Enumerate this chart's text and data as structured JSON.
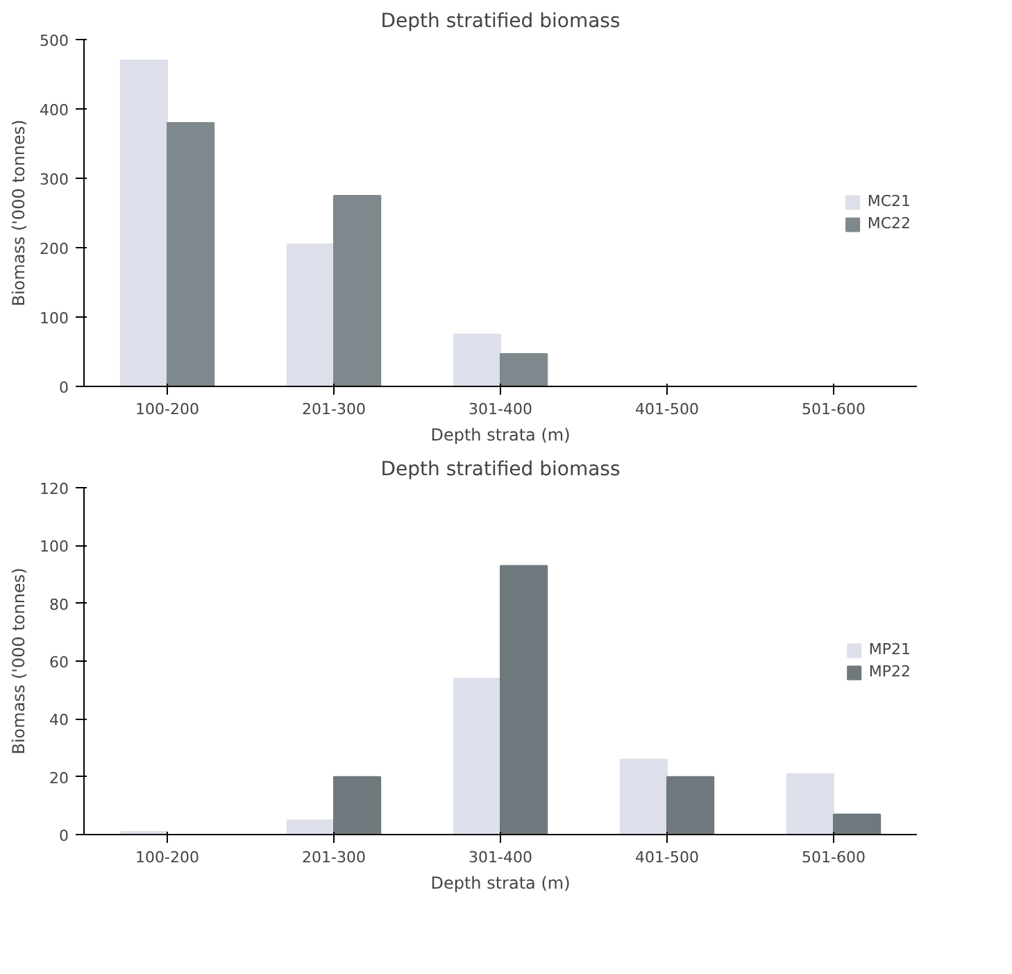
{
  "chart_data": [
    {
      "type": "bar",
      "title": "Depth stratified biomass",
      "xlabel": "Depth strata (m)",
      "ylabel": "Biomass ('000 tonnes)",
      "categories": [
        "100-200",
        "201-300",
        "301-400",
        "401-500",
        "501-600"
      ],
      "series": [
        {
          "name": "MC21",
          "color": "#dde0ea",
          "values": [
            470,
            205,
            75,
            0,
            0
          ]
        },
        {
          "name": "MC22",
          "color": "#7f898d",
          "values": [
            380,
            275,
            47,
            0,
            0
          ]
        }
      ],
      "ylim": [
        0,
        500
      ],
      "yticks": [
        0,
        100,
        200,
        300,
        400,
        500
      ],
      "grid": false,
      "legend": "right"
    },
    {
      "type": "bar",
      "title": "Depth stratified biomass",
      "xlabel": "Depth strata (m)",
      "ylabel": "Biomass ('000 tonnes)",
      "categories": [
        "100-200",
        "201-300",
        "301-400",
        "401-500",
        "501-600"
      ],
      "series": [
        {
          "name": "MP21",
          "color": "#dde0ea",
          "values": [
            1,
            5,
            54,
            26,
            21
          ]
        },
        {
          "name": "MP22",
          "color": "#6f797d",
          "values": [
            0,
            20,
            93,
            20,
            7
          ]
        }
      ],
      "ylim": [
        0,
        120
      ],
      "yticks": [
        0,
        20,
        40,
        60,
        80,
        100,
        120
      ],
      "grid": false,
      "legend": "right"
    }
  ]
}
